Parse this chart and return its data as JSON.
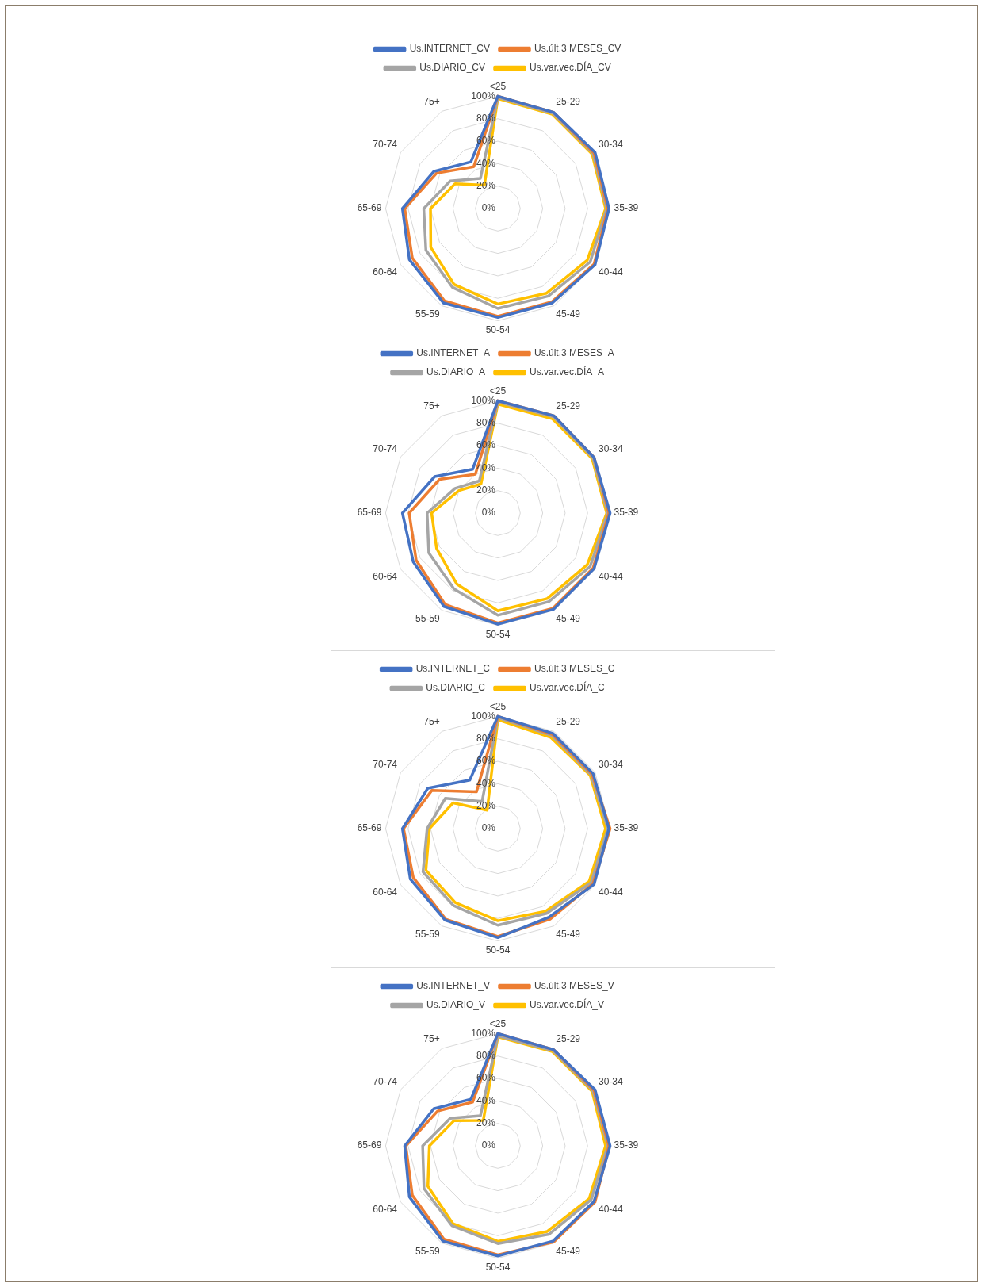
{
  "chart_data": [
    {
      "type": "radar",
      "categories": [
        "<25",
        "25-29",
        "30-34",
        "35-39",
        "40-44",
        "45-49",
        "50-54",
        "55-59",
        "60-64",
        "65-69",
        "70-74",
        "75+"
      ],
      "ylim": [
        0,
        100
      ],
      "yticks": [
        {
          "value": 0,
          "label": "0%"
        },
        {
          "value": 20,
          "label": "20%"
        },
        {
          "value": 40,
          "label": "40%"
        },
        {
          "value": 60,
          "label": "60%"
        },
        {
          "value": 80,
          "label": "80%"
        },
        {
          "value": 100,
          "label": "100%"
        }
      ],
      "grid": true,
      "legend": "top",
      "marker": "none",
      "line_style": "solid",
      "series": [
        {
          "name": "Us.INTERNET_CV",
          "color": "#4472c4",
          "values": [
            100,
            99,
            100,
            99,
            100,
            97,
            97,
            97,
            91,
            85,
            66,
            48
          ]
        },
        {
          "name": "Us.últ.3 MESES_CV",
          "color": "#ed7d31",
          "values": [
            100,
            99,
            99,
            98,
            99,
            96,
            96,
            95,
            88,
            83,
            63,
            43
          ]
        },
        {
          "name": "Us.DIARIO_CV",
          "color": "#a5a5a5",
          "values": [
            99,
            98,
            98,
            97,
            95,
            90,
            89,
            81,
            74,
            66,
            49,
            31
          ]
        },
        {
          "name": "Us.var.vec.DÍA_CV",
          "color": "#ffc000",
          "values": [
            98,
            97,
            97,
            96,
            92,
            87,
            85,
            78,
            69,
            60,
            44,
            24
          ]
        }
      ]
    },
    {
      "type": "radar",
      "categories": [
        "<25",
        "25-29",
        "30-34",
        "35-39",
        "40-44",
        "45-49",
        "50-54",
        "55-59",
        "60-64",
        "65-69",
        "70-74",
        "75+"
      ],
      "ylim": [
        0,
        100
      ],
      "yticks": [
        {
          "value": 0,
          "label": "0%"
        },
        {
          "value": 20,
          "label": "20%"
        },
        {
          "value": 40,
          "label": "40%"
        },
        {
          "value": 60,
          "label": "60%"
        },
        {
          "value": 80,
          "label": "80%"
        },
        {
          "value": 100,
          "label": "100%"
        }
      ],
      "grid": true,
      "legend": "top",
      "marker": "none",
      "line_style": "solid",
      "series": [
        {
          "name": "Us.INTERNET_A",
          "color": "#4472c4",
          "values": [
            100,
            100,
            99,
            100,
            99,
            99,
            99,
            96,
            87,
            85,
            65,
            45
          ]
        },
        {
          "name": "Us.últ.3 MESES_A",
          "color": "#ed7d31",
          "values": [
            100,
            100,
            99,
            99,
            98,
            98,
            98,
            94,
            84,
            79,
            60,
            40
          ]
        },
        {
          "name": "Us.DIARIO_A",
          "color": "#a5a5a5",
          "values": [
            99,
            99,
            98,
            98,
            95,
            91,
            91,
            78,
            71,
            63,
            44,
            33
          ]
        },
        {
          "name": "Us.var.vec.DÍA_A",
          "color": "#ffc000",
          "values": [
            97,
            97,
            97,
            97,
            92,
            88,
            87,
            73,
            63,
            59,
            40,
            30
          ]
        }
      ]
    },
    {
      "type": "radar",
      "categories": [
        "<25",
        "25-29",
        "30-34",
        "35-39",
        "40-44",
        "45-49",
        "50-54",
        "55-59",
        "60-64",
        "65-69",
        "70-74",
        "75+"
      ],
      "ylim": [
        0,
        100
      ],
      "yticks": [
        {
          "value": 0,
          "label": "0%"
        },
        {
          "value": 20,
          "label": "20%"
        },
        {
          "value": 40,
          "label": "40%"
        },
        {
          "value": 60,
          "label": "60%"
        },
        {
          "value": 80,
          "label": "80%"
        },
        {
          "value": 100,
          "label": "100%"
        }
      ],
      "grid": true,
      "legend": "top",
      "marker": "none",
      "line_style": "solid",
      "series": [
        {
          "name": "Us.INTERNET_C",
          "color": "#4472c4",
          "values": [
            100,
            98,
            98,
            99,
            99,
            91,
            97,
            94,
            90,
            85,
            72,
            50
          ]
        },
        {
          "name": "Us.últ.3 MESES_C",
          "color": "#ed7d31",
          "values": [
            100,
            97,
            97,
            100,
            98,
            93,
            96,
            93,
            87,
            84,
            68,
            38
          ]
        },
        {
          "name": "Us.DIARIO_C",
          "color": "#a5a5a5",
          "values": [
            99,
            96,
            96,
            98,
            96,
            87,
            86,
            79,
            77,
            63,
            54,
            28
          ]
        },
        {
          "name": "Us.var.vec.DÍA_C",
          "color": "#ffc000",
          "values": [
            97,
            94,
            95,
            96,
            94,
            85,
            82,
            76,
            74,
            61,
            46,
            19
          ]
        }
      ]
    },
    {
      "type": "radar",
      "categories": [
        "<25",
        "25-29",
        "30-34",
        "35-39",
        "40-44",
        "45-49",
        "50-54",
        "55-59",
        "60-64",
        "65-69",
        "70-74",
        "75+"
      ],
      "ylim": [
        0,
        100
      ],
      "yticks": [
        {
          "value": 0,
          "label": "0%"
        },
        {
          "value": 20,
          "label": "20%"
        },
        {
          "value": 40,
          "label": "40%"
        },
        {
          "value": 60,
          "label": "60%"
        },
        {
          "value": 80,
          "label": "80%"
        },
        {
          "value": 100,
          "label": "100%"
        }
      ],
      "grid": true,
      "legend": "top",
      "marker": "none",
      "line_style": "solid",
      "series": [
        {
          "name": "Us.INTERNET_V",
          "color": "#4472c4",
          "values": [
            100,
            99,
            100,
            100,
            99,
            98,
            98,
            98,
            91,
            83,
            66,
            48
          ]
        },
        {
          "name": "Us.últ.3 MESES_V",
          "color": "#ed7d31",
          "values": [
            100,
            99,
            99,
            99,
            100,
            99,
            97,
            96,
            88,
            82,
            62,
            45
          ]
        },
        {
          "name": "Us.DIARIO_V",
          "color": "#a5a5a5",
          "values": [
            98,
            98,
            98,
            98,
            96,
            91,
            87,
            82,
            76,
            67,
            49,
            31
          ]
        },
        {
          "name": "Us.var.vec.DÍA_V",
          "color": "#ffc000",
          "values": [
            97,
            97,
            97,
            96,
            94,
            88,
            85,
            80,
            72,
            61,
            45,
            26
          ]
        }
      ]
    }
  ]
}
